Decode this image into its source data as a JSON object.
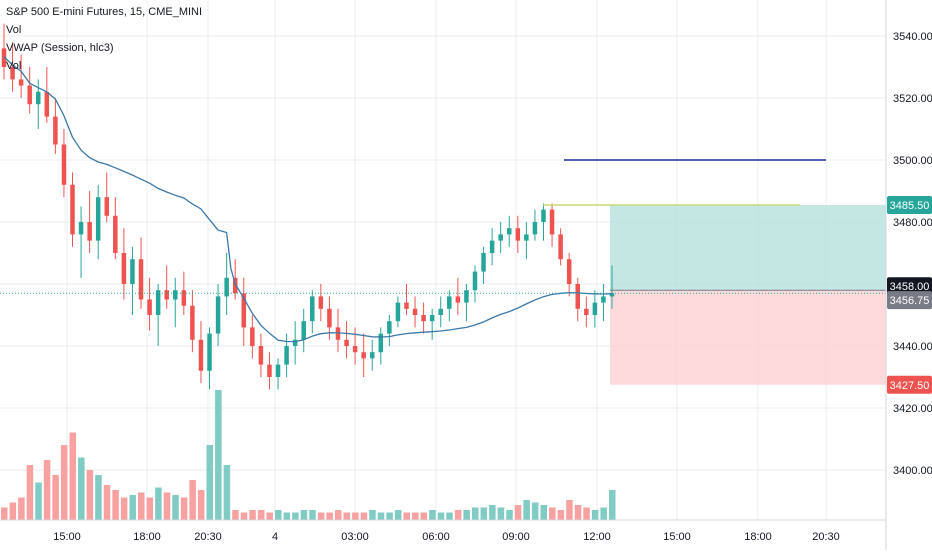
{
  "legend": {
    "symbol": "S&P 500 E-mini Futures, 15, CME_MINI",
    "vol1": "Vol",
    "vwap": "VWAP (Session, hlc3)",
    "vol2": "Vol"
  },
  "colors": {
    "up": "#26a69a",
    "down": "#ef5350",
    "vol_up": "#80cbc4",
    "vol_down": "#f7a1a1",
    "vwap": "#3c78a8",
    "grid": "#e9ecf1",
    "axis_text": "#131722",
    "blue_line": "#1f2b9c",
    "yellow_line": "#c8d97a",
    "profit_zone": "#b2dfdb",
    "loss_zone": "#ffcdd2",
    "target_label": "#26a69a",
    "entry_label": "#131722",
    "last_label": "#787b86",
    "stop_label": "#ef5350"
  },
  "chart_data": {
    "type": "candlestick",
    "y_axis": {
      "ticks": [
        3400,
        3420,
        3440,
        3460,
        3480,
        3500,
        3520,
        3540
      ],
      "tick_labels": [
        "3400.00",
        "3420.00",
        "3440.00",
        "3460.00",
        "3480.00",
        "3500.00",
        "3520.00",
        "3540.00"
      ],
      "range": [
        3388,
        3542
      ]
    },
    "x_axis": {
      "tick_labels": [
        "15:00",
        "18:00",
        "20:30",
        "4",
        "03:00",
        "06:00",
        "09:00",
        "12:00",
        "15:00",
        "18:00",
        "20:30"
      ]
    },
    "price_labels": [
      {
        "value": 3485.5,
        "text": "3485.50",
        "kind": "target"
      },
      {
        "value": 3458.0,
        "text": "3458.00",
        "kind": "entry"
      },
      {
        "value": 3456.75,
        "text": "3456.75",
        "kind": "last"
      },
      {
        "value": 3427.5,
        "text": "3427.50",
        "kind": "stop"
      }
    ],
    "candles": [
      [
        3536,
        3544,
        3526,
        3530
      ],
      [
        3530,
        3538,
        3522,
        3526
      ],
      [
        3526,
        3534,
        3520,
        3524
      ],
      [
        3524,
        3530,
        3515,
        3518
      ],
      [
        3518,
        3526,
        3510,
        3522
      ],
      [
        3522,
        3530,
        3512,
        3514
      ],
      [
        3514,
        3520,
        3502,
        3505
      ],
      [
        3505,
        3510,
        3488,
        3492
      ],
      [
        3492,
        3496,
        3472,
        3476
      ],
      [
        3476,
        3485,
        3462,
        3480
      ],
      [
        3480,
        3490,
        3470,
        3474
      ],
      [
        3474,
        3492,
        3468,
        3488
      ],
      [
        3488,
        3496,
        3480,
        3482
      ],
      [
        3482,
        3488,
        3468,
        3470
      ],
      [
        3470,
        3478,
        3455,
        3460
      ],
      [
        3460,
        3472,
        3450,
        3468
      ],
      [
        3468,
        3475,
        3452,
        3455
      ],
      [
        3455,
        3462,
        3445,
        3450
      ],
      [
        3450,
        3460,
        3440,
        3458
      ],
      [
        3458,
        3466,
        3452,
        3455
      ],
      [
        3455,
        3462,
        3446,
        3458
      ],
      [
        3458,
        3464,
        3450,
        3453
      ],
      [
        3453,
        3458,
        3438,
        3442
      ],
      [
        3442,
        3448,
        3428,
        3432
      ],
      [
        3432,
        3446,
        3426,
        3444
      ],
      [
        3444,
        3460,
        3440,
        3456
      ],
      [
        3456,
        3470,
        3450,
        3462
      ],
      [
        3462,
        3468,
        3455,
        3457
      ],
      [
        3457,
        3462,
        3440,
        3446
      ],
      [
        3446,
        3450,
        3436,
        3440
      ],
      [
        3440,
        3444,
        3430,
        3434
      ],
      [
        3434,
        3438,
        3426,
        3430
      ],
      [
        3430,
        3436,
        3426,
        3434
      ],
      [
        3434,
        3444,
        3430,
        3440
      ],
      [
        3440,
        3448,
        3434,
        3442
      ],
      [
        3442,
        3452,
        3438,
        3448
      ],
      [
        3448,
        3458,
        3444,
        3456
      ],
      [
        3456,
        3460,
        3448,
        3452
      ],
      [
        3452,
        3456,
        3442,
        3446
      ],
      [
        3446,
        3452,
        3438,
        3442
      ],
      [
        3442,
        3448,
        3436,
        3440
      ],
      [
        3440,
        3446,
        3434,
        3438
      ],
      [
        3438,
        3444,
        3430,
        3436
      ],
      [
        3436,
        3442,
        3432,
        3438
      ],
      [
        3438,
        3446,
        3434,
        3444
      ],
      [
        3444,
        3450,
        3440,
        3448
      ],
      [
        3448,
        3456,
        3446,
        3454
      ],
      [
        3454,
        3460,
        3450,
        3452
      ],
      [
        3452,
        3456,
        3446,
        3450
      ],
      [
        3450,
        3454,
        3444,
        3448
      ],
      [
        3448,
        3452,
        3442,
        3450
      ],
      [
        3450,
        3456,
        3446,
        3452
      ],
      [
        3452,
        3458,
        3448,
        3456
      ],
      [
        3456,
        3462,
        3450,
        3454
      ],
      [
        3454,
        3460,
        3448,
        3458
      ],
      [
        3458,
        3466,
        3454,
        3464
      ],
      [
        3464,
        3472,
        3460,
        3470
      ],
      [
        3470,
        3478,
        3466,
        3474
      ],
      [
        3474,
        3480,
        3470,
        3476
      ],
      [
        3476,
        3482,
        3472,
        3478
      ],
      [
        3478,
        3482,
        3470,
        3474
      ],
      [
        3474,
        3480,
        3468,
        3476
      ],
      [
        3476,
        3484,
        3474,
        3480
      ],
      [
        3480,
        3486,
        3474,
        3484
      ],
      [
        3484,
        3486,
        3472,
        3476
      ],
      [
        3476,
        3478,
        3466,
        3468
      ],
      [
        3468,
        3470,
        3456,
        3460
      ],
      [
        3460,
        3462,
        3448,
        3452
      ],
      [
        3452,
        3456,
        3446,
        3450
      ],
      [
        3450,
        3458,
        3446,
        3454
      ],
      [
        3454,
        3460,
        3448,
        3456
      ],
      [
        3456,
        3466,
        3452,
        3457
      ]
    ],
    "volume": [
      5,
      7,
      9,
      22,
      15,
      24,
      18,
      30,
      35,
      25,
      20,
      18,
      14,
      12,
      9,
      10,
      11,
      9,
      13,
      11,
      10,
      9,
      16,
      12,
      30,
      52,
      22,
      4,
      3,
      4,
      4,
      3,
      4,
      3,
      3,
      4,
      4,
      3,
      3,
      4,
      3,
      3,
      3,
      4,
      3,
      3,
      4,
      3,
      3,
      3,
      4,
      3,
      3,
      4,
      4,
      5,
      5,
      6,
      5,
      4,
      6,
      8,
      7,
      6,
      5,
      4,
      8,
      6,
      5,
      4,
      5,
      12
    ]
  }
}
